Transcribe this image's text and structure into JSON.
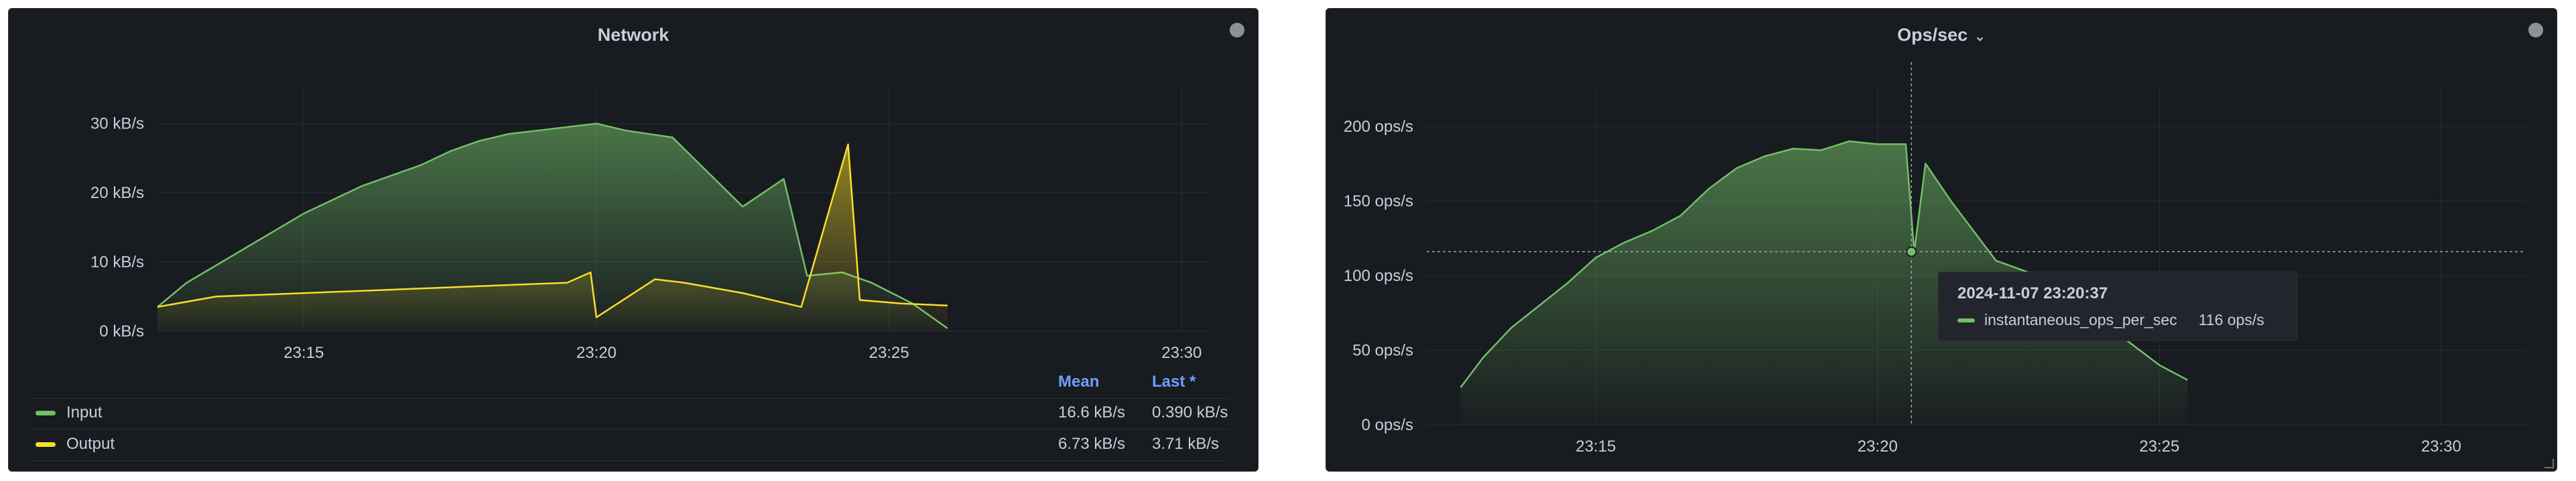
{
  "panels": {
    "network": {
      "title": "Network",
      "legend": {
        "header_mean": "Mean",
        "header_last": "Last *",
        "rows": [
          {
            "name": "Input",
            "mean": "16.6 kB/s",
            "last": "0.390 kB/s",
            "color": "#73bf69"
          },
          {
            "name": "Output",
            "mean": "6.73 kB/s",
            "last": "3.71 kB/s",
            "color": "#fade2a"
          }
        ]
      }
    },
    "ops": {
      "title": "Ops/sec",
      "tooltip": {
        "time": "2024-11-07 23:20:37",
        "series": "instantaneous_ops_per_sec",
        "value": "116 ops/s",
        "color": "#73bf69"
      }
    }
  },
  "chart_data": [
    {
      "type": "area",
      "title": "Network",
      "x_ticks": [
        "23:15",
        "23:20",
        "23:25",
        "23:30"
      ],
      "y_ticks": [
        "0 kB/s",
        "10 kB/s",
        "20 kB/s",
        "30 kB/s"
      ],
      "ylim": [
        0,
        35
      ],
      "xlim_minutes": [
        12.5,
        30.5
      ],
      "grid": true,
      "legend_placement": "bottom",
      "series": [
        {
          "name": "Input",
          "color": "#73bf69",
          "points": [
            [
              12.5,
              3.5
            ],
            [
              13.0,
              7.0
            ],
            [
              13.5,
              9.5
            ],
            [
              14.0,
              12.0
            ],
            [
              14.5,
              14.5
            ],
            [
              15.0,
              17.0
            ],
            [
              15.5,
              19.0
            ],
            [
              16.0,
              21.0
            ],
            [
              16.5,
              22.5
            ],
            [
              17.0,
              24.0
            ],
            [
              17.5,
              26.0
            ],
            [
              18.0,
              27.5
            ],
            [
              18.5,
              28.5
            ],
            [
              19.0,
              29.0
            ],
            [
              19.5,
              29.5
            ],
            [
              20.0,
              30.0
            ],
            [
              20.5,
              29.0
            ],
            [
              20.9,
              28.5
            ],
            [
              21.3,
              28.0
            ],
            [
              22.5,
              18.0
            ],
            [
              23.2,
              22.0
            ],
            [
              23.6,
              8.0
            ],
            [
              24.2,
              8.5
            ],
            [
              24.7,
              7.0
            ],
            [
              25.4,
              4.0
            ],
            [
              26.0,
              0.4
            ]
          ]
        },
        {
          "name": "Output",
          "color": "#fade2a",
          "points": [
            [
              12.5,
              3.5
            ],
            [
              13.5,
              5.0
            ],
            [
              15.0,
              5.5
            ],
            [
              16.5,
              6.0
            ],
            [
              18.0,
              6.5
            ],
            [
              19.5,
              7.0
            ],
            [
              19.9,
              8.5
            ],
            [
              20.0,
              2.0
            ],
            [
              21.0,
              7.5
            ],
            [
              21.5,
              7.0
            ],
            [
              22.5,
              5.5
            ],
            [
              23.5,
              3.5
            ],
            [
              24.3,
              27.0
            ],
            [
              24.5,
              4.5
            ],
            [
              25.2,
              4.0
            ],
            [
              26.0,
              3.7
            ]
          ]
        }
      ]
    },
    {
      "type": "area",
      "title": "Ops/sec",
      "x_ticks": [
        "23:15",
        "23:20",
        "23:25",
        "23:30"
      ],
      "y_ticks": [
        "0 ops/s",
        "50 ops/s",
        "100 ops/s",
        "150 ops/s",
        "200 ops/s"
      ],
      "ylim": [
        0,
        225
      ],
      "xlim_minutes": [
        12.0,
        31.5
      ],
      "grid": true,
      "series": [
        {
          "name": "instantaneous_ops_per_sec",
          "color": "#73bf69",
          "points": [
            [
              12.6,
              25
            ],
            [
              13.0,
              45
            ],
            [
              13.5,
              65
            ],
            [
              14.0,
              80
            ],
            [
              14.5,
              95
            ],
            [
              15.0,
              112
            ],
            [
              15.5,
              122
            ],
            [
              16.0,
              130
            ],
            [
              16.5,
              140
            ],
            [
              17.0,
              158
            ],
            [
              17.5,
              172
            ],
            [
              18.0,
              180
            ],
            [
              18.5,
              185
            ],
            [
              19.0,
              184
            ],
            [
              19.5,
              190
            ],
            [
              20.0,
              188
            ],
            [
              20.5,
              188
            ],
            [
              20.65,
              116
            ],
            [
              20.85,
              175
            ],
            [
              21.3,
              150
            ],
            [
              22.1,
              110
            ],
            [
              23.2,
              95
            ],
            [
              24.3,
              60
            ],
            [
              25.0,
              40
            ],
            [
              25.5,
              30
            ]
          ]
        }
      ],
      "crosshair": {
        "x_minute": 20.6,
        "y_value": 116
      }
    }
  ]
}
